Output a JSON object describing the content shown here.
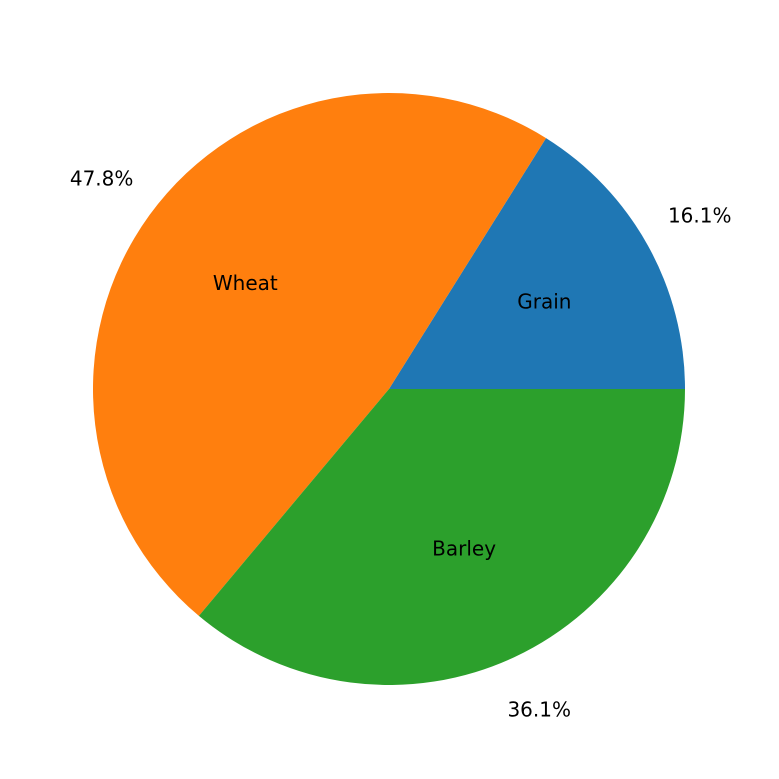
{
  "chart_data": {
    "type": "pie",
    "categories": [
      "Grain",
      "Wheat",
      "Barley"
    ],
    "values": [
      16.1,
      47.8,
      36.1
    ],
    "value_labels": [
      "16.1%",
      "47.8%",
      "36.1%"
    ],
    "colors": [
      "#1f77b4",
      "#ff7f0e",
      "#2ca02c"
    ]
  }
}
